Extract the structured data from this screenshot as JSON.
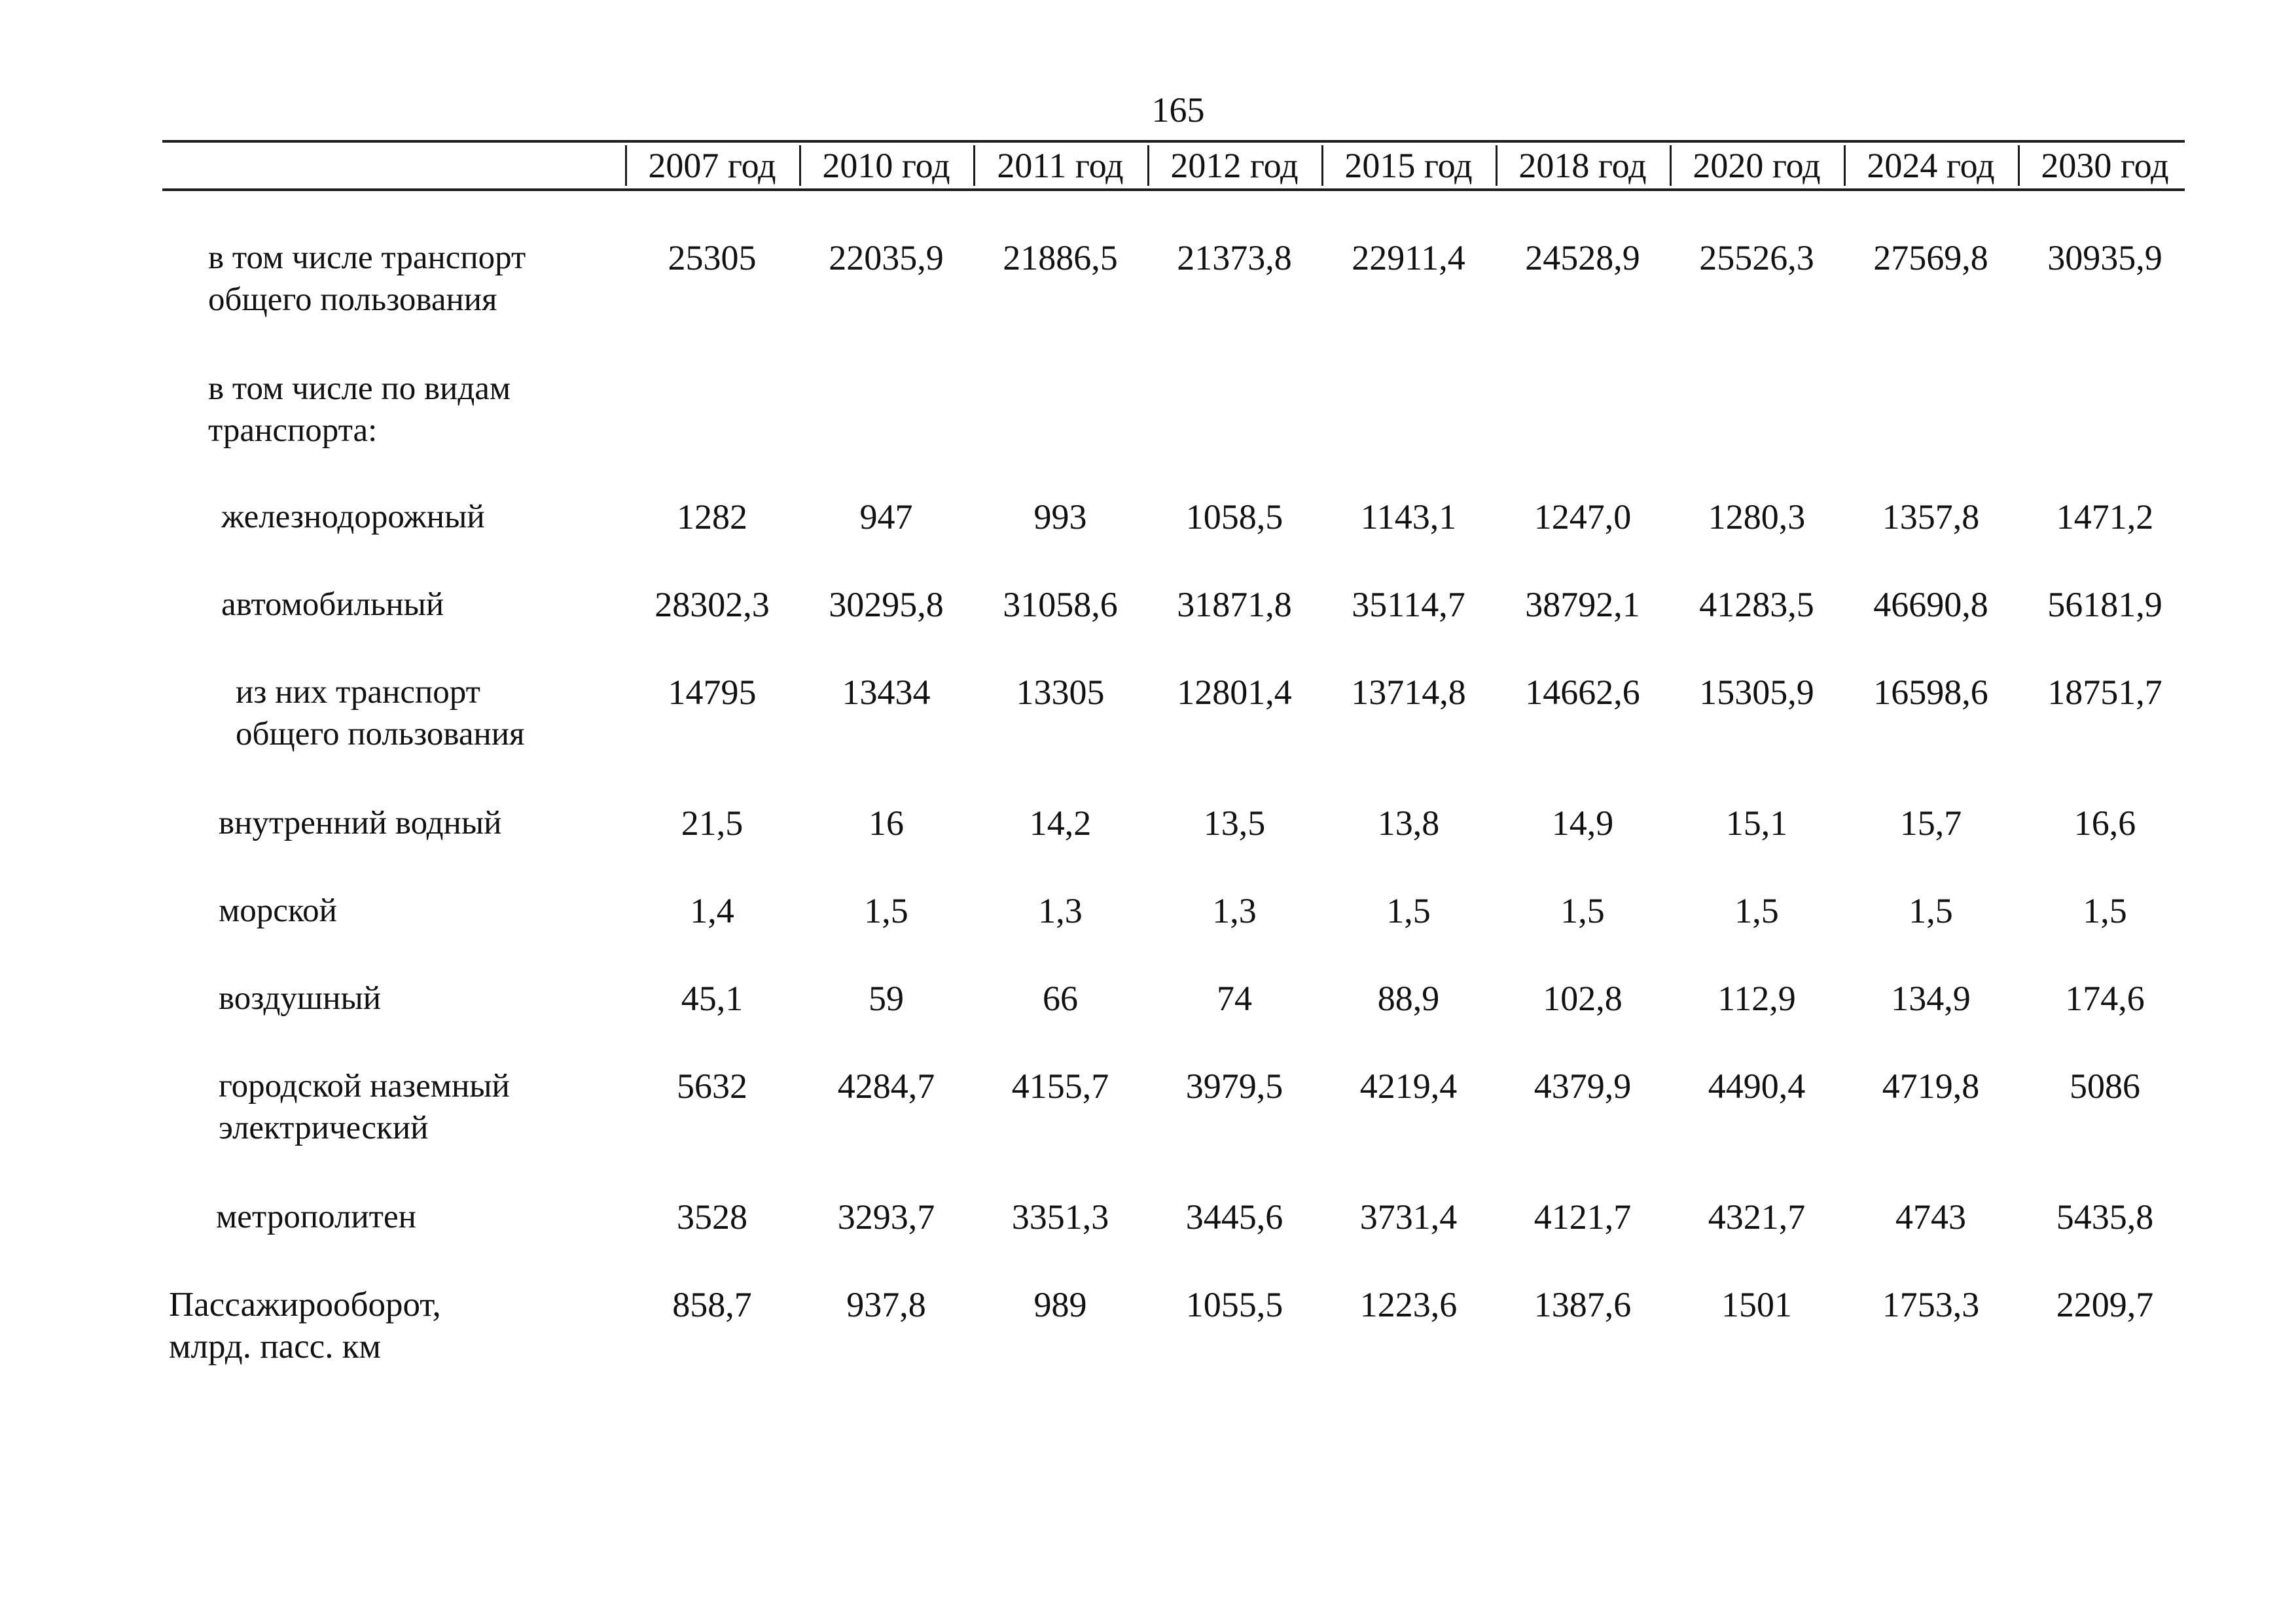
{
  "page_number": "165",
  "table": {
    "columns": [
      "2007 год",
      "2010 год",
      "2011 год",
      "2012 год",
      "2015 год",
      "2018 год",
      "2020 год",
      "2024 год",
      "2030 год"
    ],
    "rows": [
      {
        "label_lines": [
          "в том числе транспорт",
          "общего пользования"
        ],
        "values": [
          "25305",
          "22035,9",
          "21886,5",
          "21373,8",
          "22911,4",
          "24528,9",
          "25526,3",
          "27569,8",
          "30935,9"
        ]
      },
      {
        "label_lines": [
          "в том числе по видам",
          "транспорта:"
        ],
        "values": []
      },
      {
        "label_lines": [
          "железнодорожный"
        ],
        "values": [
          "1282",
          "947",
          "993",
          "1058,5",
          "1143,1",
          "1247,0",
          "1280,3",
          "1357,8",
          "1471,2"
        ]
      },
      {
        "label_lines": [
          "автомобильный"
        ],
        "values": [
          "28302,3",
          "30295,8",
          "31058,6",
          "31871,8",
          "35114,7",
          "38792,1",
          "41283,5",
          "46690,8",
          "56181,9"
        ]
      },
      {
        "label_lines": [
          "из них транспорт",
          "общего пользования"
        ],
        "values": [
          "14795",
          "13434",
          "13305",
          "12801,4",
          "13714,8",
          "14662,6",
          "15305,9",
          "16598,6",
          "18751,7"
        ]
      },
      {
        "label_lines": [
          "внутренний водный"
        ],
        "values": [
          "21,5",
          "16",
          "14,2",
          "13,5",
          "13,8",
          "14,9",
          "15,1",
          "15,7",
          "16,6"
        ]
      },
      {
        "label_lines": [
          "морской"
        ],
        "values": [
          "1,4",
          "1,5",
          "1,3",
          "1,3",
          "1,5",
          "1,5",
          "1,5",
          "1,5",
          "1,5"
        ]
      },
      {
        "label_lines": [
          "воздушный"
        ],
        "values": [
          "45,1",
          "59",
          "66",
          "74",
          "88,9",
          "102,8",
          "112,9",
          "134,9",
          "174,6"
        ]
      },
      {
        "label_lines": [
          "городской наземный",
          "электрический"
        ],
        "values": [
          "5632",
          "4284,7",
          "4155,7",
          "3979,5",
          "4219,4",
          "4379,9",
          "4490,4",
          "4719,8",
          "5086"
        ]
      },
      {
        "label_lines": [
          "метрополитен"
        ],
        "values": [
          "3528",
          "3293,7",
          "3351,3",
          "3445,6",
          "3731,4",
          "4121,7",
          "4321,7",
          "4743",
          "5435,8"
        ]
      },
      {
        "label_lines": [
          "Пассажирооборот,",
          "млрд. пасс. км"
        ],
        "values": [
          "858,7",
          "937,8",
          "989",
          "1055,5",
          "1223,6",
          "1387,6",
          "1501",
          "1753,3",
          "2209,7"
        ]
      }
    ]
  }
}
